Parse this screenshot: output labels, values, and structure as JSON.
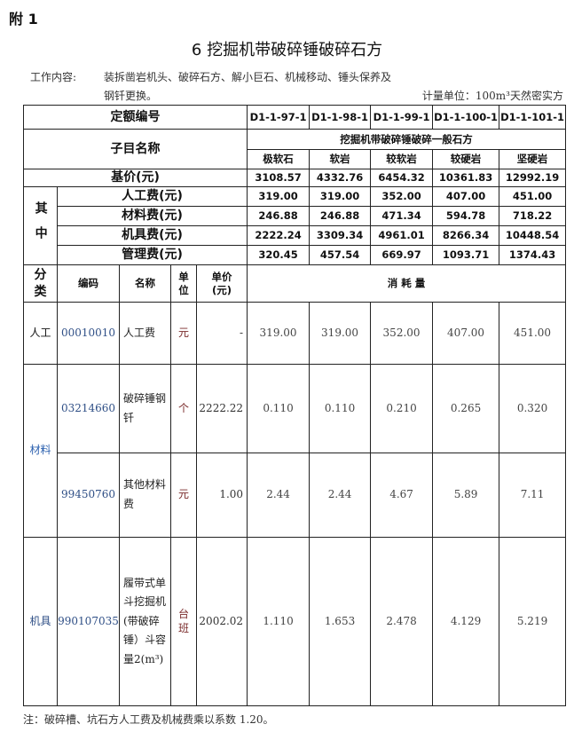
{
  "appendix": "附 1",
  "title": "6 挖掘机带破碎锤破碎石方",
  "work_content_label": "工作内容:",
  "work_content_line1": "装拆凿岩机头、破碎石方、解小巨石、机械移动、锤头保养及",
  "work_content_line2": "钢钎更换。",
  "unit_note": "计量单位：100m³天然密实方",
  "header": {
    "quota_code_label": "定额编号",
    "codes": [
      "D1-1-97-1",
      "D1-1-98-1",
      "D1-1-99-1",
      "D1-1-100-1",
      "D1-1-101-1"
    ],
    "item_name_label": "子目名称",
    "group_name": "挖掘机带破碎锤破碎一般石方",
    "sub_names": [
      "极软石",
      "软岩",
      "较软岩",
      "较硬岩",
      "坚硬岩"
    ],
    "base_price_label": "基价(元)",
    "base_prices": [
      "3108.57",
      "4332.76",
      "6454.32",
      "10361.83",
      "12992.19"
    ],
    "of_which_label": "其中",
    "breakdown": [
      {
        "label": "人工费(元)",
        "values": [
          "319.00",
          "319.00",
          "352.00",
          "407.00",
          "451.00"
        ]
      },
      {
        "label": "材料费(元)",
        "values": [
          "246.88",
          "246.88",
          "471.34",
          "594.78",
          "718.22"
        ]
      },
      {
        "label": "机具费(元)",
        "values": [
          "2222.24",
          "3309.34",
          "4961.01",
          "8266.34",
          "10448.54"
        ]
      },
      {
        "label": "管理费(元)",
        "values": [
          "320.45",
          "457.54",
          "669.97",
          "1093.71",
          "1374.43"
        ]
      }
    ],
    "col_category": "分类",
    "col_code": "编码",
    "col_name": "名称",
    "col_unit": "单位",
    "col_price": "单价(元)",
    "col_consumption": "消 耗 量"
  },
  "rows": [
    {
      "category": "人工",
      "code": "00010010",
      "name": "人工费",
      "unit": "元",
      "price": "-",
      "values": [
        "319.00",
        "319.00",
        "352.00",
        "407.00",
        "451.00"
      ]
    },
    {
      "category": "材料",
      "code": "03214660",
      "name": "破碎锤钢钎",
      "unit": "个",
      "price": "2222.22",
      "values": [
        "0.110",
        "0.110",
        "0.210",
        "0.265",
        "0.320"
      ]
    },
    {
      "code": "99450760",
      "name": "其他材料费",
      "unit": "元",
      "price": "1.00",
      "values": [
        "2.44",
        "2.44",
        "4.67",
        "5.89",
        "7.11"
      ]
    },
    {
      "category": "机具",
      "code": "990107035",
      "name": "履带式单斗挖掘机(带破碎锤）斗容量2(m³)",
      "unit": "台班",
      "price": "2002.02",
      "values": [
        "1.110",
        "1.653",
        "2.478",
        "4.129",
        "5.219"
      ]
    }
  ],
  "note": "注：破碎槽、坑石方人工费及机械费乘以系数 1.20。"
}
